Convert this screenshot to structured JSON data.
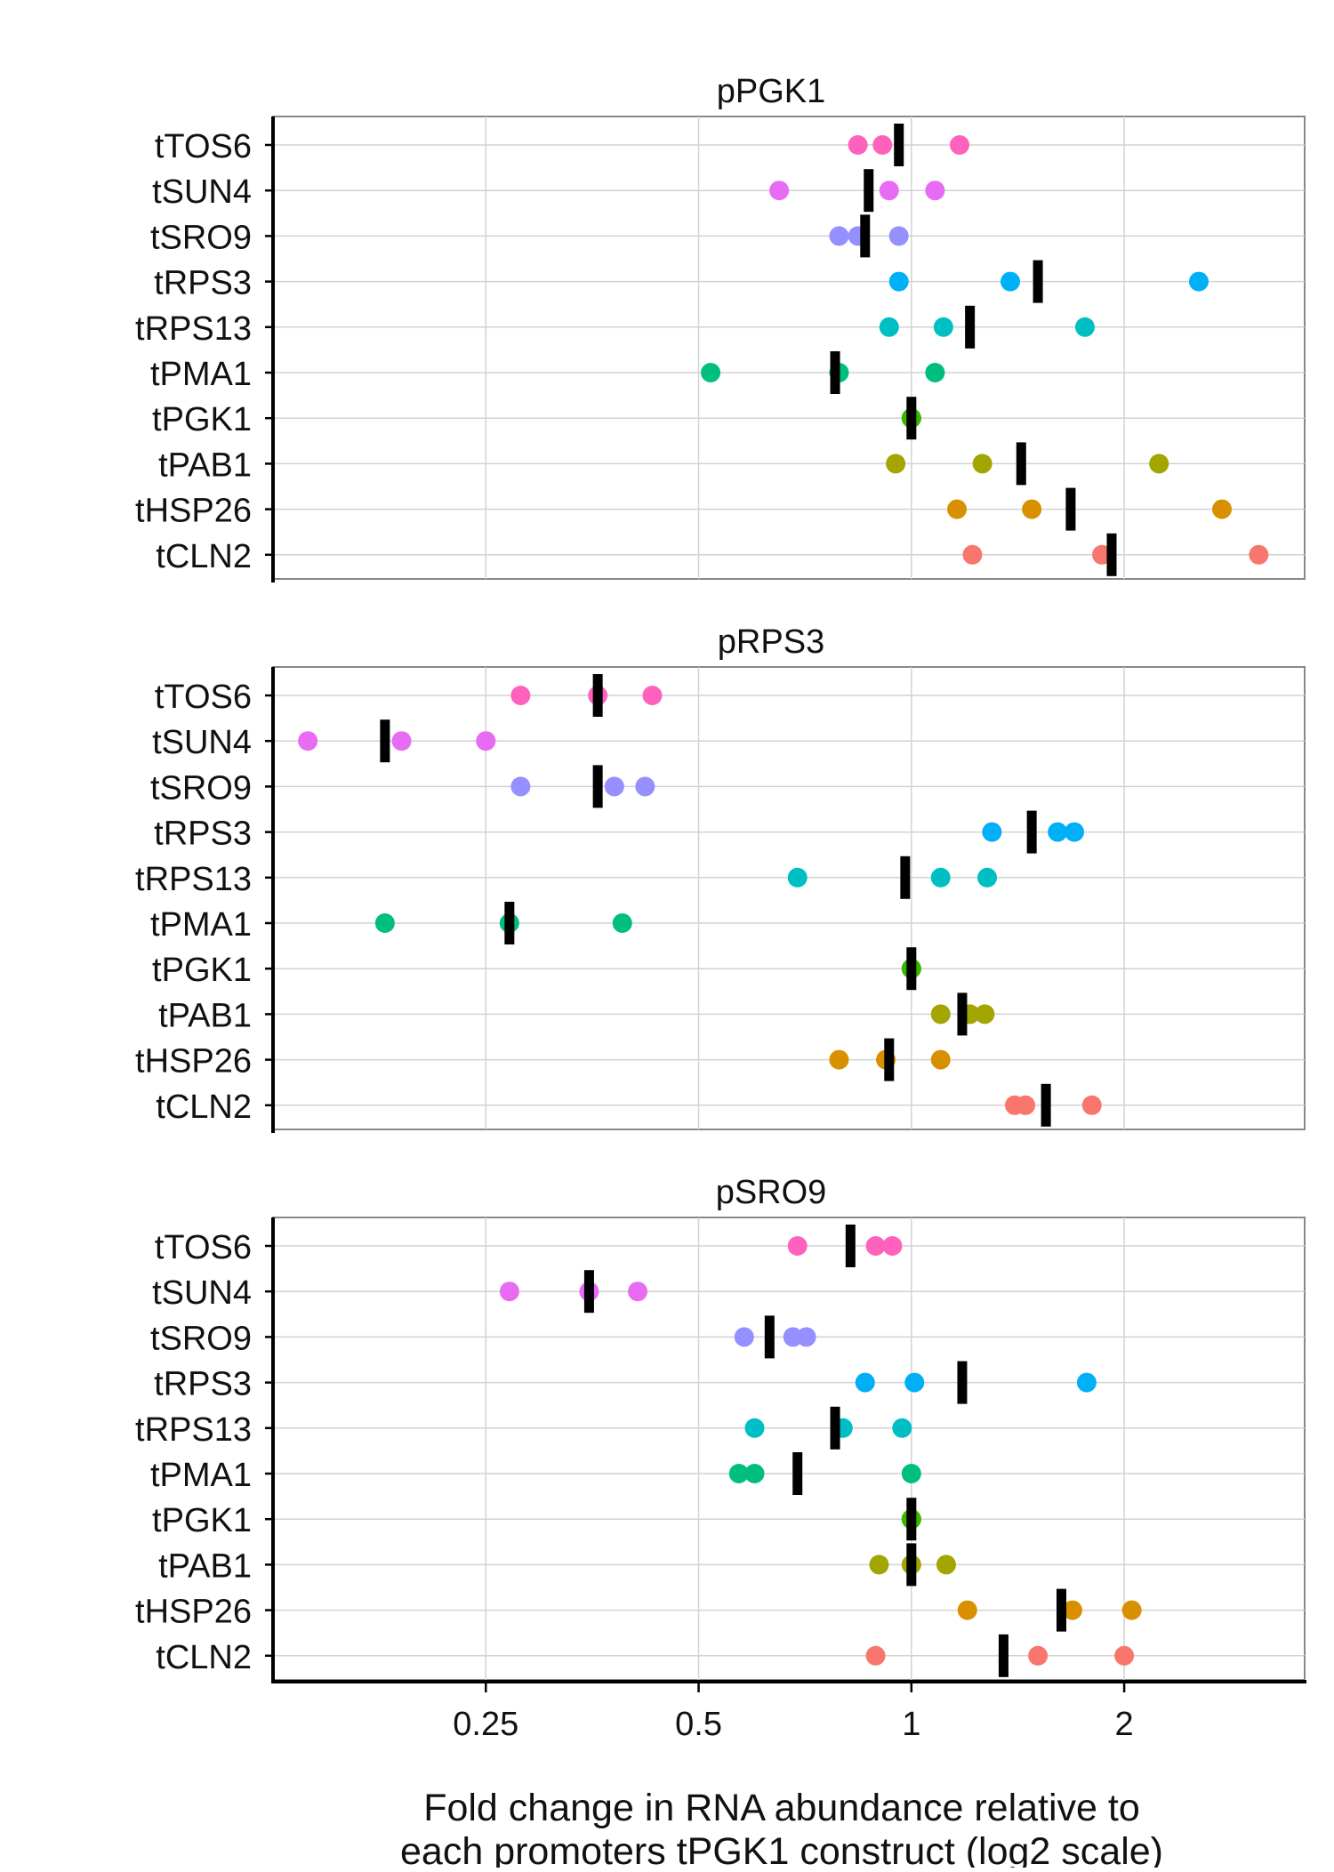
{
  "chart_data": {
    "type": "scatter",
    "xlabel_lines": [
      "Fold change in RNA abundance relative to",
      "each promoters tPGK1 construct (log2 scale)"
    ],
    "x_scale": "log2",
    "xlim": [
      0.125,
      3.6
    ],
    "x_ticks": [
      0.25,
      0.5,
      1,
      2
    ],
    "x_tick_labels": [
      "0.25",
      "0.5",
      "1",
      "2"
    ],
    "categories": [
      "tTOS6",
      "tSUN4",
      "tSRO9",
      "tRPS3",
      "tRPS13",
      "tPMA1",
      "tPGK1",
      "tPAB1",
      "tHSP26",
      "tCLN2"
    ],
    "category_colors": {
      "tTOS6": "#FF62BC",
      "tSUN4": "#E76BF3",
      "tSRO9": "#9590FF",
      "tRPS3": "#00B0F6",
      "tRPS13": "#00BFC4",
      "tPMA1": "#00BF7D",
      "tPGK1": "#39B600",
      "tPAB1": "#A3A500",
      "tHSP26": "#D89000",
      "tCLN2": "#F8766D"
    },
    "median_mark_color": "#000000",
    "grid": true,
    "panels": [
      {
        "title": "pPGK1",
        "rows": [
          {
            "category": "tTOS6",
            "points": [
              0.84,
              0.91,
              1.17
            ],
            "median": 0.96
          },
          {
            "category": "tSUN4",
            "points": [
              0.65,
              0.93,
              1.08
            ],
            "median": 0.87
          },
          {
            "category": "tSRO9",
            "points": [
              0.79,
              0.84,
              0.96
            ],
            "median": 0.86
          },
          {
            "category": "tRPS3",
            "points": [
              0.96,
              1.38,
              2.55
            ],
            "median": 1.51
          },
          {
            "category": "tRPS13",
            "points": [
              0.93,
              1.11,
              1.76
            ],
            "median": 1.21
          },
          {
            "category": "tPMA1",
            "points": [
              0.52,
              0.79,
              1.08
            ],
            "median": 0.78
          },
          {
            "category": "tPGK1",
            "points": [
              1.0,
              1.0,
              1.0
            ],
            "median": 1.0
          },
          {
            "category": "tPAB1",
            "points": [
              0.95,
              1.26,
              2.24
            ],
            "median": 1.43
          },
          {
            "category": "tHSP26",
            "points": [
              1.16,
              1.48,
              2.75
            ],
            "median": 1.68
          },
          {
            "category": "tCLN2",
            "points": [
              1.22,
              1.86,
              3.1
            ],
            "median": 1.92
          }
        ]
      },
      {
        "title": "pRPS3",
        "rows": [
          {
            "category": "tTOS6",
            "points": [
              0.28,
              0.36,
              0.43
            ],
            "median": 0.36
          },
          {
            "category": "tSUN4",
            "points": [
              0.14,
              0.19,
              0.25
            ],
            "median": 0.18
          },
          {
            "category": "tSRO9",
            "points": [
              0.28,
              0.38,
              0.42
            ],
            "median": 0.36
          },
          {
            "category": "tRPS3",
            "points": [
              1.3,
              1.61,
              1.7
            ],
            "median": 1.48
          },
          {
            "category": "tRPS13",
            "points": [
              0.69,
              1.1,
              1.28
            ],
            "median": 0.98
          },
          {
            "category": "tPMA1",
            "points": [
              0.18,
              0.27,
              0.39
            ],
            "median": 0.27
          },
          {
            "category": "tPGK1",
            "points": [
              1.0,
              1.0,
              1.0
            ],
            "median": 1.0
          },
          {
            "category": "tPAB1",
            "points": [
              1.1,
              1.21,
              1.27
            ],
            "median": 1.18
          },
          {
            "category": "tHSP26",
            "points": [
              0.79,
              0.92,
              1.1
            ],
            "median": 0.93
          },
          {
            "category": "tCLN2",
            "points": [
              1.4,
              1.45,
              1.8
            ],
            "median": 1.55
          }
        ]
      },
      {
        "title": "pSRO9",
        "rows": [
          {
            "category": "tTOS6",
            "points": [
              0.69,
              0.89,
              0.94
            ],
            "median": 0.82
          },
          {
            "category": "tSUN4",
            "points": [
              0.27,
              0.35,
              0.41
            ],
            "median": 0.35
          },
          {
            "category": "tSRO9",
            "points": [
              0.58,
              0.68,
              0.71
            ],
            "median": 0.63
          },
          {
            "category": "tRPS3",
            "points": [
              0.86,
              1.01,
              1.77
            ],
            "median": 1.18
          },
          {
            "category": "tRPS13",
            "points": [
              0.6,
              0.8,
              0.97
            ],
            "median": 0.78
          },
          {
            "category": "tPMA1",
            "points": [
              0.57,
              0.6,
              1.0
            ],
            "median": 0.69
          },
          {
            "category": "tPGK1",
            "points": [
              1.0,
              1.0,
              1.0
            ],
            "median": 1.0
          },
          {
            "category": "tPAB1",
            "points": [
              0.9,
              1.0,
              1.12
            ],
            "median": 1.0
          },
          {
            "category": "tHSP26",
            "points": [
              1.2,
              1.69,
              2.05
            ],
            "median": 1.63
          },
          {
            "category": "tCLN2",
            "points": [
              0.89,
              1.51,
              2.0
            ],
            "median": 1.35
          }
        ]
      }
    ]
  }
}
